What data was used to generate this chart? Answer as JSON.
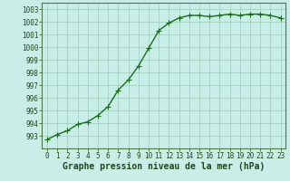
{
  "x": [
    0,
    1,
    2,
    3,
    4,
    5,
    6,
    7,
    8,
    9,
    10,
    11,
    12,
    13,
    14,
    15,
    16,
    17,
    18,
    19,
    20,
    21,
    22,
    23
  ],
  "y": [
    992.7,
    993.1,
    993.4,
    993.9,
    994.1,
    994.6,
    995.3,
    996.6,
    997.4,
    998.5,
    999.9,
    1001.3,
    1001.9,
    1002.3,
    1002.5,
    1002.5,
    1002.4,
    1002.5,
    1002.6,
    1002.5,
    1002.6,
    1002.6,
    1002.5,
    1002.3
  ],
  "line_color": "#1a6e1a",
  "marker": "+",
  "marker_size": 4,
  "marker_color": "#1a6e1a",
  "bg_color": "#c8eee8",
  "grid_color": "#9dccbb",
  "xlabel": "Graphe pression niveau de la mer (hPa)",
  "xlabel_fontsize": 7,
  "ylim": [
    992,
    1003.5
  ],
  "yticks": [
    993,
    994,
    995,
    996,
    997,
    998,
    999,
    1000,
    1001,
    1002,
    1003
  ],
  "xticks": [
    0,
    1,
    2,
    3,
    4,
    5,
    6,
    7,
    8,
    9,
    10,
    11,
    12,
    13,
    14,
    15,
    16,
    17,
    18,
    19,
    20,
    21,
    22,
    23
  ],
  "tick_fontsize": 5.5,
  "tick_color": "#1a4a1a",
  "spine_color": "#4a7a4a",
  "line_width": 1.0
}
